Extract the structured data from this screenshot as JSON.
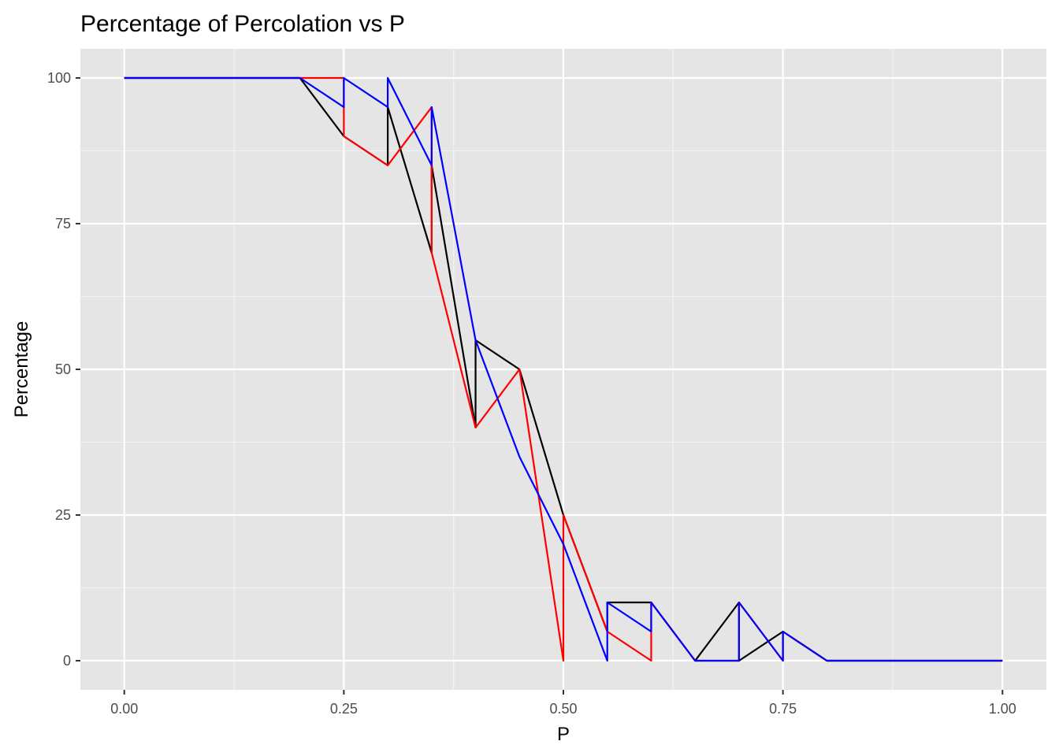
{
  "chart_data": {
    "type": "line",
    "title": "Percentage of Percolation vs P",
    "xlabel": "P",
    "ylabel": "Percentage",
    "xlim": [
      -0.05,
      1.05
    ],
    "ylim": [
      -5,
      105
    ],
    "x_ticks": [
      0,
      0.25,
      0.5,
      0.75,
      1
    ],
    "x_tick_labels": [
      "0.00",
      "0.25",
      "0.50",
      "0.75",
      "1.00"
    ],
    "y_ticks": [
      0,
      25,
      50,
      75,
      100
    ],
    "y_tick_labels": [
      "0",
      "25",
      "50",
      "75",
      "100"
    ],
    "grid": true,
    "legend": "none",
    "x": [
      0,
      0.05,
      0.1,
      0.15,
      0.2,
      0.25,
      0.25,
      0.3,
      0.3,
      0.35,
      0.35,
      0.4,
      0.4,
      0.45,
      0.45,
      0.5,
      0.5,
      0.55,
      0.55,
      0.6,
      0.6,
      0.65,
      0.7,
      0.7,
      0.75,
      0.75,
      0.8,
      0.85,
      0.9,
      0.95,
      1
    ],
    "series": [
      {
        "color": "#000000",
        "values": [
          100,
          100,
          100,
          100,
          100,
          90,
          90,
          85,
          95,
          70,
          85,
          40,
          55,
          50,
          50,
          25,
          25,
          5,
          10,
          10,
          10,
          0,
          10,
          0,
          5,
          5,
          0,
          0,
          0,
          0,
          0
        ]
      },
      {
        "color": "#ff0000",
        "values": [
          100,
          100,
          100,
          100,
          100,
          100,
          90,
          85,
          85,
          95,
          70,
          40,
          40,
          50,
          50,
          0,
          25,
          5,
          5,
          0,
          10,
          0,
          0,
          10,
          0,
          5,
          0,
          0,
          0,
          0,
          0
        ]
      },
      {
        "color": "#0000ff",
        "values": [
          100,
          100,
          100,
          100,
          100,
          95,
          100,
          95,
          100,
          85,
          95,
          55,
          55,
          35,
          35,
          20,
          20,
          0,
          10,
          5,
          10,
          0,
          0,
          10,
          0,
          5,
          0,
          0,
          0,
          0,
          0
        ]
      }
    ]
  }
}
